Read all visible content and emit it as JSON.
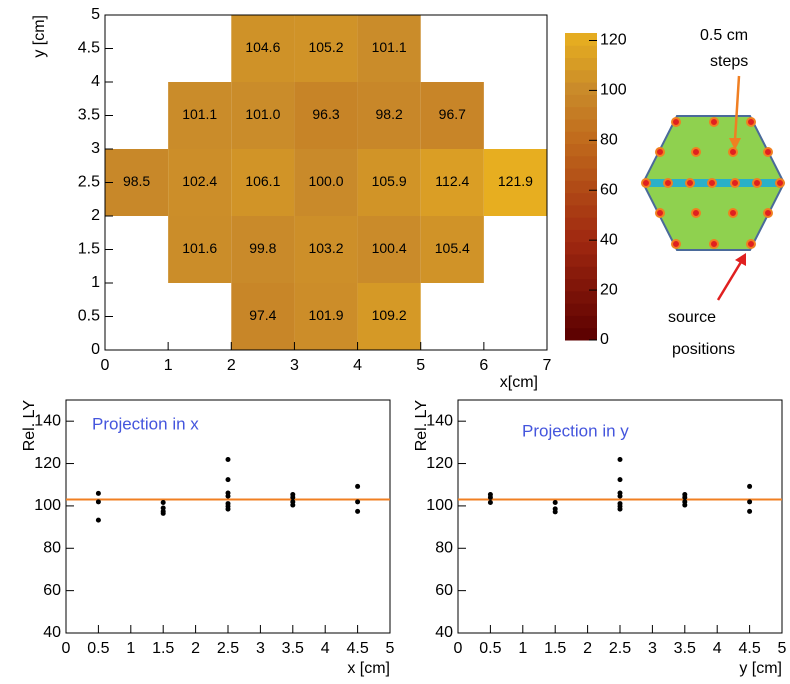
{
  "chart_data": [
    {
      "type": "heatmap",
      "x": [
        2.5,
        3.5,
        4.5,
        1.5,
        2.5,
        3.5,
        4.5,
        5.5,
        0.5,
        1.5,
        2.5,
        3.5,
        4.5,
        5.5,
        6.5,
        1.5,
        2.5,
        3.5,
        4.5,
        5.5,
        2.5,
        3.5,
        4.5
      ],
      "y": [
        4.5,
        4.5,
        4.5,
        3.5,
        3.5,
        3.5,
        3.5,
        3.5,
        2.5,
        2.5,
        2.5,
        2.5,
        2.5,
        2.5,
        2.5,
        1.5,
        1.5,
        1.5,
        1.5,
        1.5,
        0.5,
        0.5,
        0.5
      ],
      "values": [
        104.6,
        105.2,
        101.1,
        101.1,
        101.0,
        96.3,
        98.2,
        96.7,
        98.5,
        102.4,
        106.1,
        100.0,
        105.9,
        112.4,
        121.9,
        101.6,
        99.8,
        103.2,
        100.4,
        105.4,
        97.4,
        101.9,
        109.2
      ],
      "value_labels": [
        "104.6",
        "105.2",
        "101.1",
        "101.1",
        "101.0",
        "96.3",
        "98.2",
        "96.7",
        "98.5",
        "102.4",
        "106.1",
        "100.0",
        "105.9",
        "112.4",
        "121.9",
        "101.6",
        "99.8",
        "103.2",
        "100.4",
        "105.4",
        "97.4",
        "101.9",
        "109.2"
      ],
      "xlim": [
        0,
        7
      ],
      "ylim": [
        0,
        5
      ],
      "xticks": [
        0,
        1,
        2,
        3,
        4,
        5,
        6,
        7
      ],
      "yticks": [
        0,
        0.5,
        1,
        1.5,
        2,
        2.5,
        3,
        3.5,
        4,
        4.5,
        5
      ],
      "xlabel": "x[cm]",
      "ylabel": "y [cm]",
      "zlim": [
        0,
        123
      ],
      "zticks": [
        0,
        20,
        40,
        60,
        80,
        100,
        120
      ],
      "colorscale": [
        [
          0,
          "#5a0000"
        ],
        [
          40,
          "#a02810"
        ],
        [
          80,
          "#c06a1c"
        ],
        [
          100,
          "#c98a2a"
        ],
        [
          123,
          "#e8b020"
        ]
      ]
    },
    {
      "type": "scatter",
      "annotation": "Projection in x",
      "annotation_color": "#4455dd",
      "x": [
        0.5,
        0.5,
        0.5,
        1.5,
        1.5,
        1.5,
        1.5,
        2.5,
        2.5,
        2.5,
        2.5,
        2.5,
        2.5,
        2.5,
        3.5,
        3.5,
        3.5,
        3.5,
        4.5,
        4.5,
        4.5
      ],
      "values": [
        105.9,
        101.9,
        93.3,
        101.6,
        99,
        97.4,
        96.5,
        121.9,
        112.4,
        106.1,
        104.6,
        101.1,
        99.8,
        98.5,
        105.4,
        104,
        101.9,
        100.4,
        109.2,
        101.9,
        97.4
      ],
      "color": "#000000",
      "reference_line": 103,
      "reference_color": "#f07f22",
      "xlim": [
        0,
        5
      ],
      "ylim": [
        40,
        150
      ],
      "xticks": [
        0,
        0.5,
        1,
        1.5,
        2,
        2.5,
        3,
        3.5,
        4,
        4.5,
        5
      ],
      "yticks": [
        40,
        60,
        80,
        100,
        120,
        140
      ],
      "xlabel": "x [cm]",
      "ylabel": "Rel. LY"
    },
    {
      "type": "scatter",
      "annotation": "Projection in y",
      "annotation_color": "#4455dd",
      "x": [
        0.5,
        0.5,
        0.5,
        1.5,
        1.5,
        1.5,
        2.5,
        2.5,
        2.5,
        2.5,
        2.5,
        2.5,
        2.5,
        3.5,
        3.5,
        3.5,
        3.5,
        4.5,
        4.5,
        4.5
      ],
      "values": [
        105.4,
        104,
        101.6,
        101.6,
        98.6,
        97.2,
        121.9,
        112.4,
        106.1,
        104.6,
        101.1,
        99.8,
        98.5,
        105.4,
        104,
        101.9,
        100.4,
        109.2,
        101.9,
        97.4
      ],
      "color": "#000000",
      "reference_line": 103,
      "reference_color": "#f07f22",
      "xlim": [
        0,
        5
      ],
      "ylim": [
        40,
        150
      ],
      "xticks": [
        0,
        0.5,
        1,
        1.5,
        2,
        2.5,
        3,
        3.5,
        4,
        4.5,
        5
      ],
      "yticks": [
        40,
        60,
        80,
        100,
        120,
        140
      ],
      "xlabel": "y [cm]",
      "ylabel": "Rel. LY"
    }
  ],
  "diagram": {
    "step_label": [
      "0.5 cm",
      "steps"
    ],
    "source_label": [
      "source",
      "positions"
    ]
  }
}
